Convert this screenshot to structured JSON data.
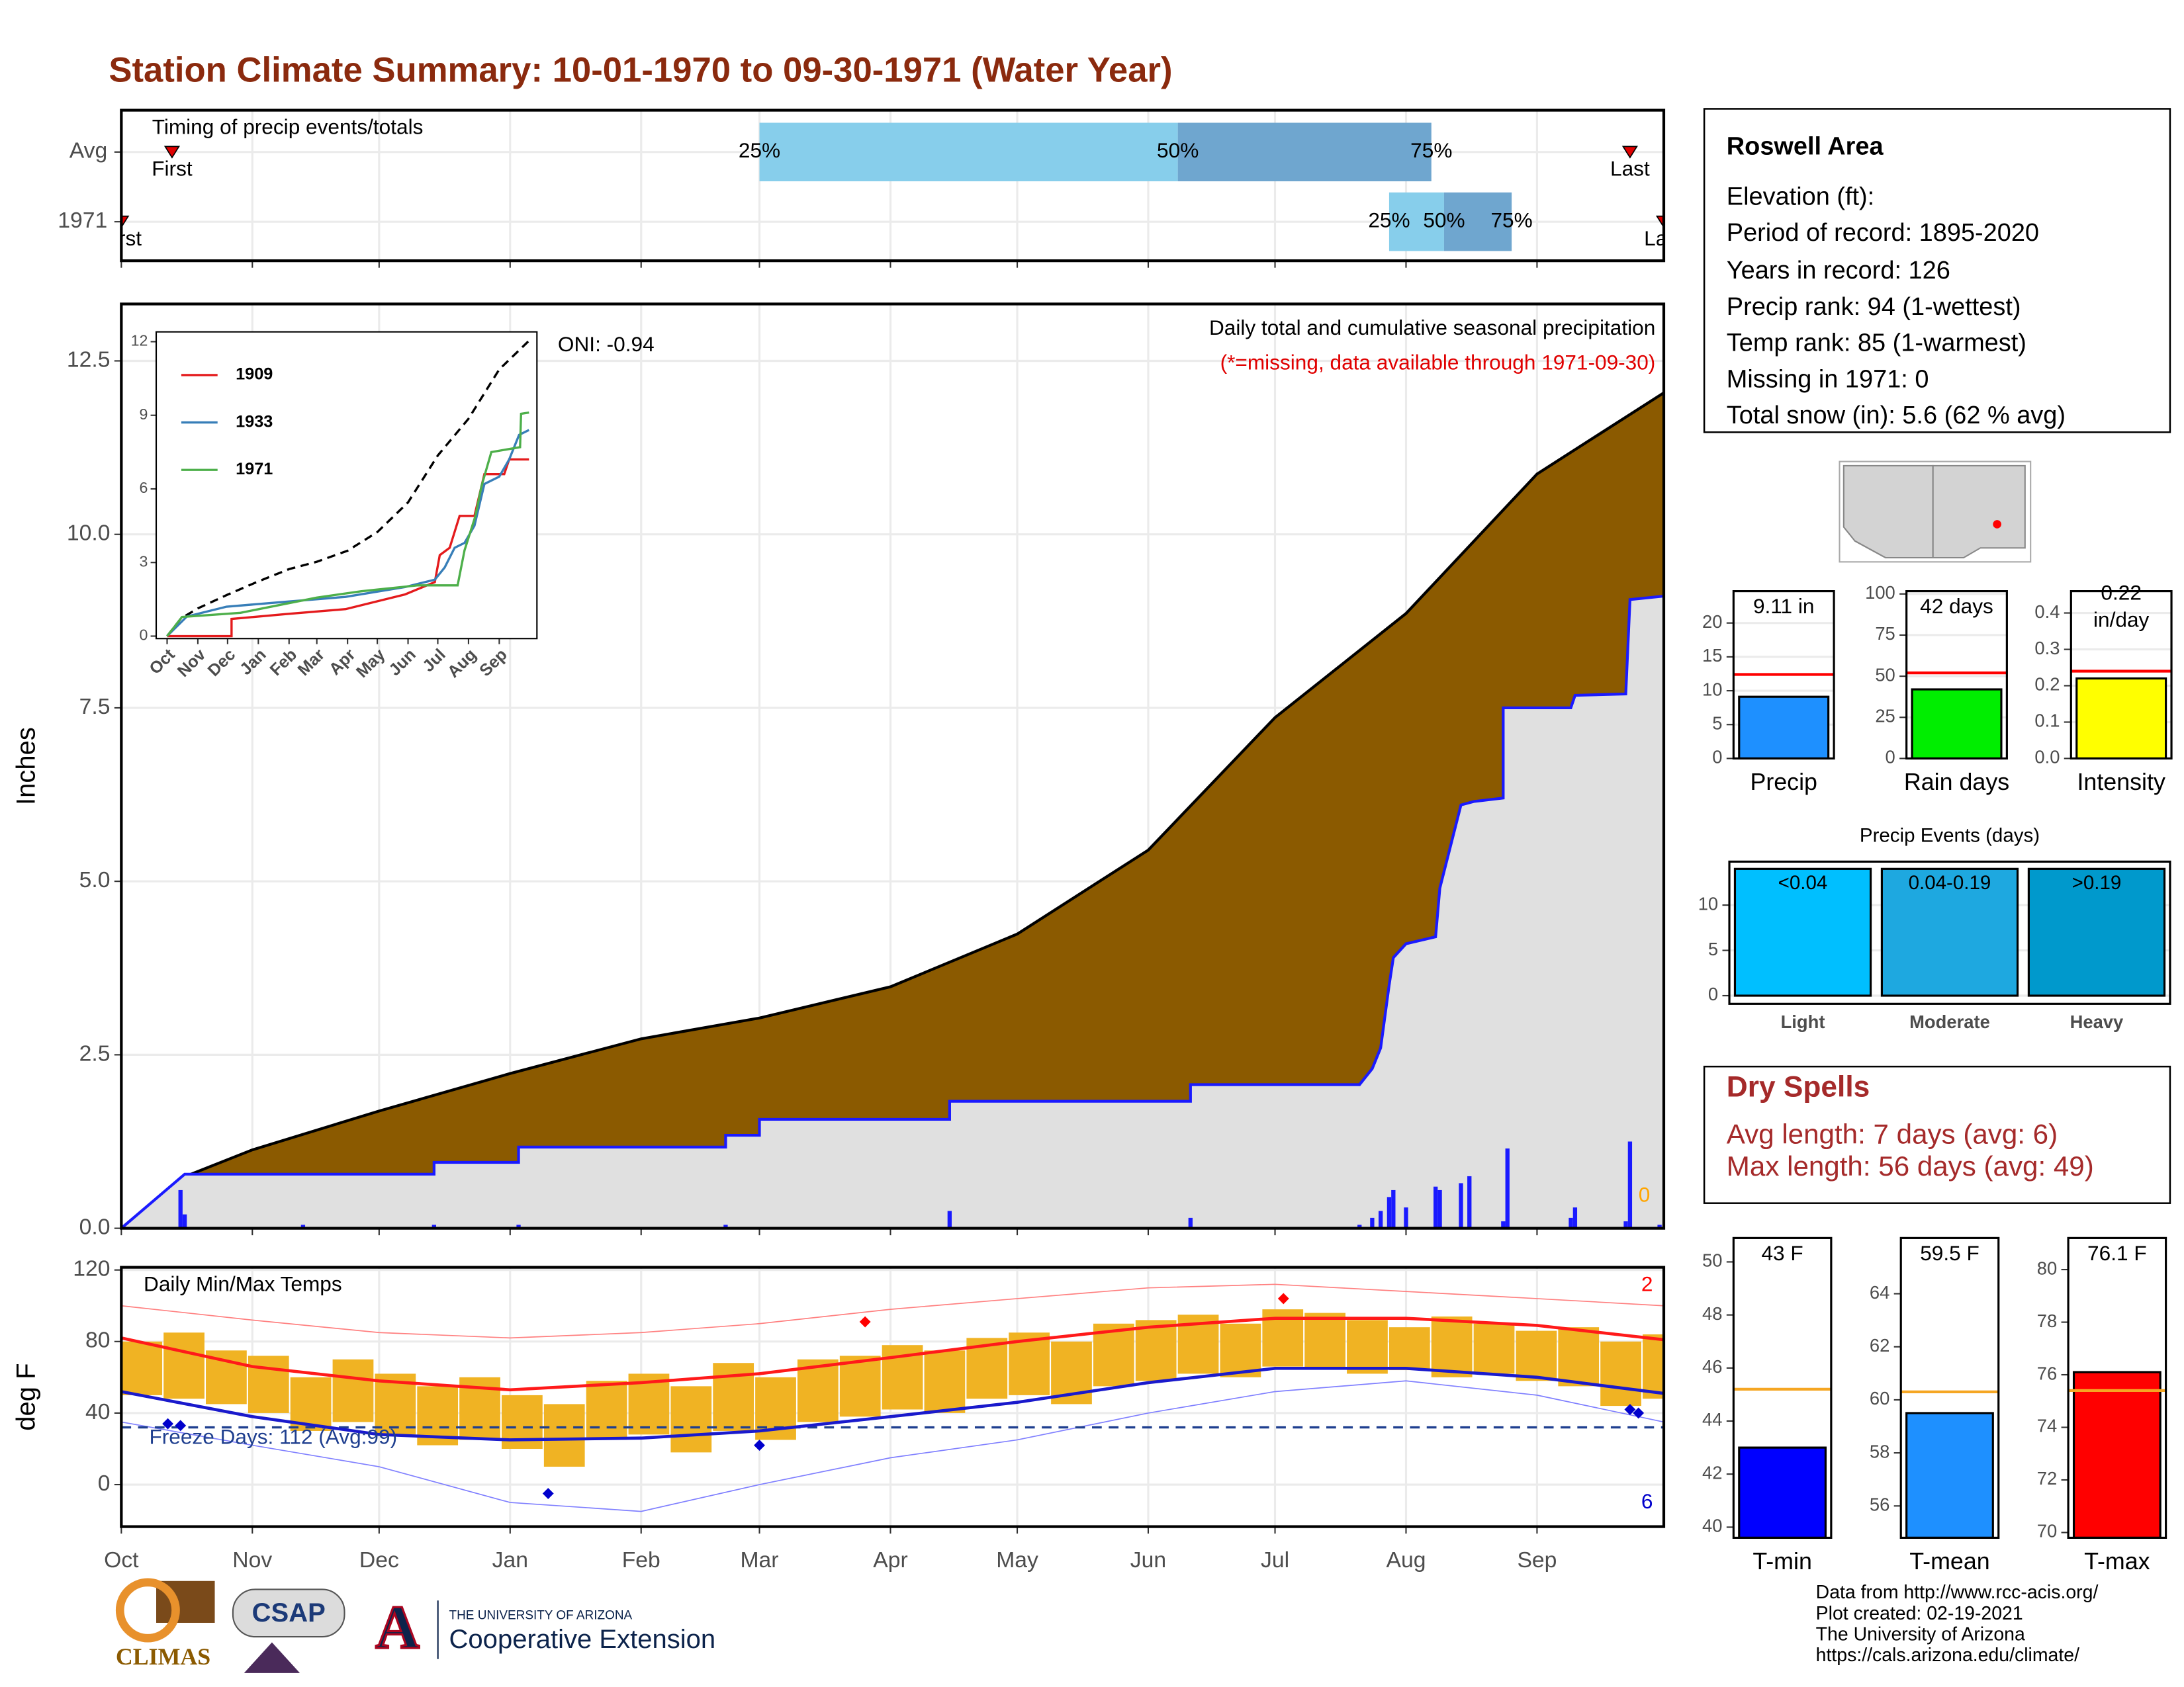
{
  "title": "Station Climate Summary: 10-01-1970 to 09-30-1971 (Water Year)",
  "station": {
    "name": "Roswell Area",
    "lines": [
      "Elevation (ft):",
      "Period of record: 1895-2020",
      "Years in record: 126",
      "Precip rank: 94 (1-wettest)",
      "Temp rank: 85 (1-warmest)",
      "Missing in 1971: 0",
      "Total snow (in): 5.6 (62 % avg)"
    ]
  },
  "dry_spells": {
    "title": "Dry Spells",
    "lines": [
      "Avg length: 7 days (avg: 6)",
      "Max length: 56 days (avg: 49)"
    ]
  },
  "logos": [
    "CLIMAS",
    "CSAP",
    "THE UNIVERSITY OF ARIZONA",
    "Cooperative Extension"
  ],
  "footer": [
    "Data from http://www.rcc-acis.org/",
    "Plot created: 02-19-2021",
    "The University of Arizona",
    "https://cals.arizona.edu/climate/"
  ],
  "chart_data": [
    {
      "type": "range",
      "title": "Timing of precip events/totals",
      "xlim": [
        0,
        365
      ],
      "xticks": [
        0,
        31,
        61,
        92,
        123,
        151,
        182,
        212,
        243,
        273,
        304,
        335
      ],
      "grid": true,
      "marker_labels": [
        "First",
        "25%",
        "50%",
        "75%",
        "Last"
      ],
      "colors": [
        "#87ceeb",
        "#6fa6cf"
      ],
      "rows": [
        {
          "name": "Avg",
          "first": 12,
          "p25": 151,
          "p50": 250,
          "p75": 310,
          "last": 357
        },
        {
          "name": "1971",
          "first": 0,
          "p25": 300,
          "p50": 313,
          "p75": 329,
          "last": 365
        }
      ]
    },
    {
      "type": "area",
      "annotation": "Daily total and cumulative seasonal precipitation",
      "note": "(*=missing, data available through 1971-09-30)",
      "oni": "ONI: -0.94",
      "missing": 0,
      "y_label": "Inches",
      "xlim": [
        0,
        365
      ],
      "xticks": [
        0,
        31,
        61,
        92,
        123,
        151,
        182,
        212,
        243,
        273,
        304,
        335
      ],
      "ylim": [
        0,
        13.32
      ],
      "yticks": [
        {
          "value": 0,
          "label": "0.0"
        },
        2.5,
        {
          "value": 5,
          "label": "5.0"
        },
        7.5,
        {
          "value": 10,
          "label": "10.0"
        },
        12.5
      ],
      "grid": true,
      "series": [
        {
          "color": "#8b5a00",
          "line_color": "#000000",
          "x": [
            0,
            14,
            31,
            61,
            92,
            123,
            151,
            182,
            212,
            243,
            273,
            304,
            335,
            365
          ],
          "values": [
            0,
            0.72,
            1.13,
            1.69,
            2.23,
            2.73,
            3.03,
            3.48,
            4.24,
            5.45,
            7.36,
            8.86,
            10.87,
            12.04
          ]
        },
        {
          "color": "#e0e0e0",
          "line_color": "#1a1aff",
          "x": [
            0,
            15,
            74,
            74,
            94,
            94,
            143,
            143,
            151,
            151,
            196,
            196,
            253,
            253,
            293,
            296,
            298,
            300,
            301,
            304,
            311,
            312,
            317,
            320,
            327,
            327,
            343,
            344,
            356,
            357,
            365
          ],
          "values": [
            0,
            0.78,
            0.78,
            0.95,
            0.95,
            1.17,
            1.17,
            1.34,
            1.34,
            1.57,
            1.57,
            1.83,
            1.83,
            2.07,
            2.07,
            2.3,
            2.6,
            3.5,
            3.9,
            4.1,
            4.2,
            4.9,
            6.1,
            6.15,
            6.2,
            7.5,
            7.5,
            7.68,
            7.7,
            9.06,
            9.11
          ]
        }
      ],
      "daily": {
        "color": "#1a1aff",
        "x": [
          14,
          15,
          43,
          74,
          94,
          143,
          196,
          253,
          293,
          296,
          298,
          300,
          301,
          304,
          311,
          312,
          317,
          319,
          327,
          328,
          343,
          344,
          356,
          357,
          364
        ],
        "values": [
          0.55,
          0.2,
          0.05,
          0.05,
          0.05,
          0.05,
          0.25,
          0.15,
          0.05,
          0.15,
          0.25,
          0.45,
          0.55,
          0.3,
          0.6,
          0.55,
          0.65,
          0.75,
          0.1,
          1.15,
          0.15,
          0.3,
          0.1,
          1.25,
          0.05
        ]
      },
      "missing_color": "#ffa500",
      "note_color": "#e00000"
    },
    {
      "type": "line",
      "xlim": [
        -11,
        373
      ],
      "ylim": [
        -0.1,
        12.4
      ],
      "yticks": [
        0,
        3,
        6,
        9,
        12
      ],
      "xticks": [
        {
          "value": 0,
          "label": "Oct"
        },
        {
          "value": 31,
          "label": "Nov"
        },
        {
          "value": 61,
          "label": "Dec"
        },
        {
          "value": 92,
          "label": "Jan"
        },
        {
          "value": 123,
          "label": "Feb"
        },
        {
          "value": 151,
          "label": "Mar"
        },
        {
          "value": 182,
          "label": "Apr"
        },
        {
          "value": 212,
          "label": "May"
        },
        {
          "value": 243,
          "label": "Jun"
        },
        {
          "value": 273,
          "label": "Jul"
        },
        {
          "value": 304,
          "label": "Aug"
        },
        {
          "value": 335,
          "label": "Sep"
        }
      ],
      "series": [
        {
          "name": "1909",
          "color": "#e41a1c",
          "x": [
            0,
            65,
            65,
            120,
            180,
            240,
            270,
            275,
            285,
            295,
            310,
            320,
            340,
            345,
            365
          ],
          "values": [
            0,
            0,
            0.7,
            0.9,
            1.1,
            1.7,
            2.2,
            3.3,
            3.6,
            4.9,
            4.9,
            6.6,
            6.6,
            7.2,
            7.2
          ]
        },
        {
          "name": "1933",
          "color": "#377eb8",
          "x": [
            0,
            20,
            60,
            120,
            180,
            240,
            270,
            280,
            290,
            300,
            310,
            320,
            335,
            345,
            355,
            365
          ],
          "values": [
            0,
            0.8,
            1.2,
            1.4,
            1.6,
            2.0,
            2.3,
            2.8,
            3.6,
            3.8,
            4.5,
            6.2,
            6.5,
            7.2,
            8.2,
            8.4
          ]
        },
        {
          "name": "1971",
          "color": "#4daf4a",
          "x": [
            0,
            15,
            74,
            151,
            196,
            253,
            293,
            300,
            311,
            317,
            327,
            356,
            357,
            365
          ],
          "values": [
            0,
            0.78,
            0.95,
            1.57,
            1.83,
            2.07,
            2.07,
            3.5,
            4.9,
            6.1,
            7.5,
            7.7,
            9.06,
            9.11
          ]
        }
      ]
    },
    {
      "type": "temperature",
      "title": "Daily Min/Max Temps",
      "freeze_label": "Freeze Days: 112 (Avg:99)",
      "freeze_line": 32,
      "high_count": 2,
      "low_count": 6,
      "y_label": "deg F",
      "xlim": [
        0,
        365
      ],
      "ylim": [
        -23.5,
        121.5
      ],
      "yticks": [
        0,
        40,
        80,
        120
      ],
      "grid": true,
      "xticks": [
        {
          "value": 0,
          "label": "Oct"
        },
        {
          "value": 31,
          "label": "Nov"
        },
        {
          "value": 61,
          "label": "Dec"
        },
        {
          "value": 92,
          "label": "Jan"
        },
        {
          "value": 123,
          "label": "Feb"
        },
        {
          "value": 151,
          "label": "Mar"
        },
        {
          "value": 182,
          "label": "Apr"
        },
        {
          "value": 212,
          "label": "May"
        },
        {
          "value": 243,
          "label": "Jun"
        },
        {
          "value": 273,
          "label": "Jul"
        },
        {
          "value": 304,
          "label": "Aug"
        },
        {
          "value": 335,
          "label": "Sep"
        }
      ],
      "daily": {
        "color": "#f0b323",
        "x": [
          0,
          10,
          20,
          30,
          40,
          50,
          60,
          70,
          80,
          90,
          100,
          110,
          120,
          130,
          140,
          150,
          160,
          170,
          180,
          190,
          200,
          210,
          220,
          230,
          240,
          250,
          260,
          270,
          280,
          290,
          300,
          310,
          320,
          330,
          340,
          350,
          360
        ],
        "max": [
          80,
          85,
          75,
          72,
          60,
          70,
          62,
          55,
          60,
          50,
          45,
          58,
          62,
          55,
          68,
          60,
          70,
          72,
          78,
          75,
          82,
          85,
          80,
          90,
          92,
          95,
          90,
          98,
          96,
          92,
          88,
          94,
          90,
          86,
          88,
          80,
          84
        ],
        "min": [
          50,
          48,
          45,
          40,
          30,
          35,
          28,
          22,
          25,
          20,
          10,
          25,
          28,
          18,
          30,
          25,
          35,
          38,
          42,
          40,
          48,
          50,
          45,
          55,
          58,
          62,
          60,
          66,
          65,
          62,
          64,
          60,
          62,
          58,
          55,
          44,
          48
        ]
      },
      "records": [
        {
          "color": "#ff8080",
          "x": [
            0,
            31,
            61,
            92,
            123,
            151,
            182,
            212,
            243,
            273,
            304,
            335,
            365
          ],
          "values": [
            100,
            92,
            85,
            82,
            85,
            90,
            98,
            104,
            110,
            112,
            108,
            104,
            100
          ]
        },
        {
          "color": "#8080ff",
          "x": [
            0,
            31,
            61,
            92,
            123,
            151,
            182,
            212,
            243,
            273,
            304,
            335,
            365
          ],
          "values": [
            35,
            22,
            10,
            -10,
            -15,
            0,
            15,
            25,
            40,
            52,
            58,
            50,
            35
          ]
        }
      ],
      "series": [
        {
          "color": "#ff1a1a",
          "x": [
            0,
            31,
            61,
            92,
            123,
            151,
            182,
            212,
            243,
            273,
            304,
            335,
            365
          ],
          "values": [
            82,
            66,
            58,
            53,
            57,
            62,
            71,
            80,
            88,
            93,
            93,
            89,
            81
          ]
        },
        {
          "color": "#1a1acc",
          "x": [
            0,
            31,
            61,
            92,
            123,
            151,
            182,
            212,
            243,
            273,
            304,
            335,
            365
          ],
          "values": [
            52,
            38,
            28,
            25,
            26,
            30,
            38,
            46,
            57,
            65,
            65,
            60,
            51
          ]
        }
      ],
      "highs": {
        "color": "#ff0000",
        "x": [
          176,
          275
        ],
        "values": [
          91,
          104
        ]
      },
      "lows": {
        "color": "#0000cc",
        "x": [
          11,
          14,
          101,
          151,
          357,
          359
        ],
        "values": [
          34,
          33,
          -5,
          22,
          42,
          40
        ]
      },
      "freeze_color": "#1f3f8f"
    },
    {
      "type": "bar",
      "categories": [
        "Precip"
      ],
      "values": [
        9.11
      ],
      "value_labels": [
        "9.11 in"
      ],
      "color": "#1e90ff",
      "average": 12.4,
      "average_color": "#ff0000",
      "ylim": [
        0,
        24.7
      ],
      "yticks": [
        0,
        5,
        10,
        15,
        20
      ],
      "grid": true
    },
    {
      "type": "bar",
      "categories": [
        "Rain days"
      ],
      "values": [
        42
      ],
      "value_labels": [
        "42 days"
      ],
      "color": "#00ee00",
      "average": 52,
      "average_color": "#ff0000",
      "ylim": [
        0,
        101.7
      ],
      "yticks": [
        0,
        25,
        50,
        75,
        100
      ],
      "grid": true
    },
    {
      "type": "bar",
      "categories": [
        "Intensity"
      ],
      "values": [
        0.22
      ],
      "value_labels": [
        "0.22\nin/day"
      ],
      "color": "#ffff00",
      "average": 0.24,
      "average_color": "#ff0000",
      "ylim": [
        0,
        0.46
      ],
      "yticks": [
        {
          "value": 0,
          "label": "0.0"
        },
        0.1,
        0.2,
        0.3,
        0.4
      ],
      "grid": true
    },
    {
      "type": "bar",
      "title": "Precip Events (days)",
      "categories": [
        "Light",
        "Moderate",
        "Heavy"
      ],
      "bin_labels": [
        "<0.04",
        "0.04-0.19",
        ">0.19"
      ],
      "values": [
        14,
        14,
        14
      ],
      "colors": [
        "#00bfff",
        "#1ea8e0",
        "#0099cc"
      ],
      "ylim": [
        -0.9,
        14.8
      ],
      "yticks": [
        0,
        5,
        10
      ],
      "grid": true
    },
    {
      "type": "bar",
      "categories": [
        "T-min"
      ],
      "values": [
        43
      ],
      "value_labels": [
        "43 F"
      ],
      "color": "#0000ff",
      "average": 45.2,
      "average_color": "#f5a623",
      "ylim": [
        39.6,
        50.9
      ],
      "yticks": [
        40,
        42,
        44,
        46,
        48,
        50
      ],
      "grid": false
    },
    {
      "type": "bar",
      "categories": [
        "T-mean"
      ],
      "values": [
        59.5
      ],
      "value_labels": [
        "59.5 F"
      ],
      "color": "#1e90ff",
      "average": 60.3,
      "average_color": "#f5a623",
      "ylim": [
        54.8,
        66.1
      ],
      "yticks": [
        56,
        58,
        60,
        62,
        64
      ],
      "grid": false
    },
    {
      "type": "bar",
      "categories": [
        "T-max"
      ],
      "values": [
        76.1
      ],
      "value_labels": [
        "76.1 F"
      ],
      "color": "#ff0000",
      "average": 75.4,
      "average_color": "#f5a623",
      "ylim": [
        69.8,
        81.2
      ],
      "yticks": [
        70,
        72,
        74,
        76,
        78,
        80
      ],
      "grid": false
    }
  ]
}
